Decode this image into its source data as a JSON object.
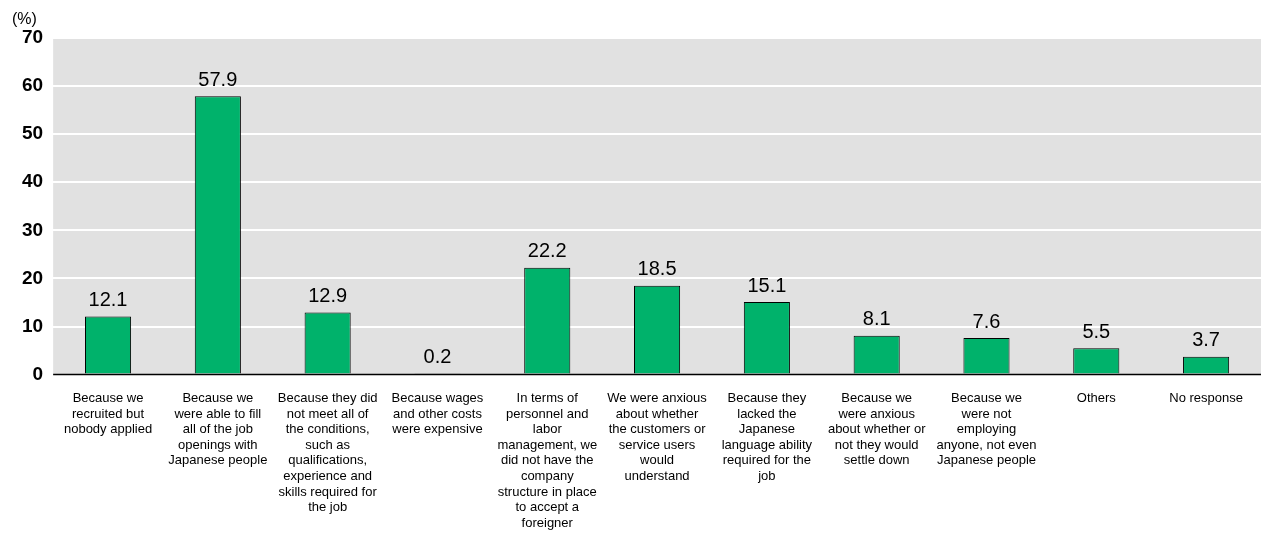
{
  "chart_data": {
    "type": "bar",
    "ylabel": "(%)",
    "categories": [
      "Because we recruited but nobody applied",
      "Because we were able to fill all of the job openings with Japanese people",
      "Because they did not meet all of the conditions, such as qualifications, experience and skills required for the job",
      "Because wages and other costs were expensive",
      "In terms of personnel and labor management, we did not have the company structure in place to accept a foreigner",
      "We were anxious about whether the customers or service users would understand",
      "Because they lacked the Japanese language ability required for the job",
      "Because we were anxious about whether or not they would settle down",
      "Because we were not employing anyone, not even Japanese people",
      "Others",
      "No response"
    ],
    "values": [
      12.1,
      57.9,
      12.9,
      0.2,
      22.2,
      18.5,
      15.1,
      8.1,
      7.6,
      5.5,
      3.7
    ],
    "color": "#00b26b",
    "data_labels": true,
    "grid": "y",
    "legend": false,
    "ylim": [
      0,
      70
    ],
    "yticks": [
      0,
      10,
      20,
      30,
      40,
      50,
      60,
      70
    ]
  }
}
